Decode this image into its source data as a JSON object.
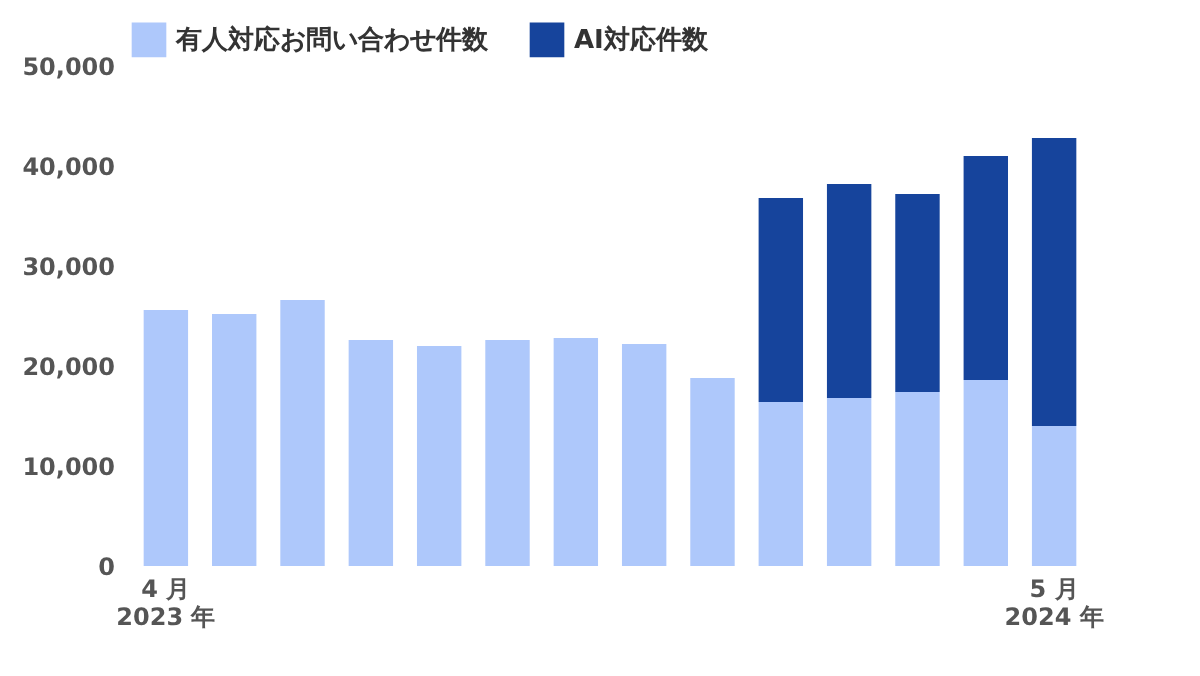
{
  "chart_data": {
    "type": "bar",
    "stacked": true,
    "categories": [
      "4 月\n2023 年",
      null,
      null,
      null,
      null,
      null,
      null,
      null,
      null,
      null,
      null,
      null,
      null,
      "5 月\n2024 年"
    ],
    "series": [
      {
        "name": "有人対応お問い合わせ件数",
        "color": "#aec8fb",
        "values": [
          25600,
          25200,
          26600,
          22600,
          22000,
          22600,
          22800,
          22200,
          18800,
          16400,
          16800,
          17400,
          18600,
          14000
        ]
      },
      {
        "name": "AI対応件数",
        "color": "#16449c",
        "values": [
          null,
          null,
          null,
          null,
          null,
          null,
          null,
          null,
          null,
          20400,
          21400,
          19800,
          22400,
          28800
        ]
      }
    ],
    "ylim": [
      0,
      50000
    ],
    "yticks": [
      0,
      {
        "value": 10000,
        "label": "10,000"
      },
      {
        "value": 20000,
        "label": "20,000"
      },
      {
        "value": 30000,
        "label": "30,000"
      },
      {
        "value": 40000,
        "label": "40,000"
      },
      {
        "value": 50000,
        "label": "50,000"
      }
    ],
    "grid": false,
    "legend": "top"
  }
}
